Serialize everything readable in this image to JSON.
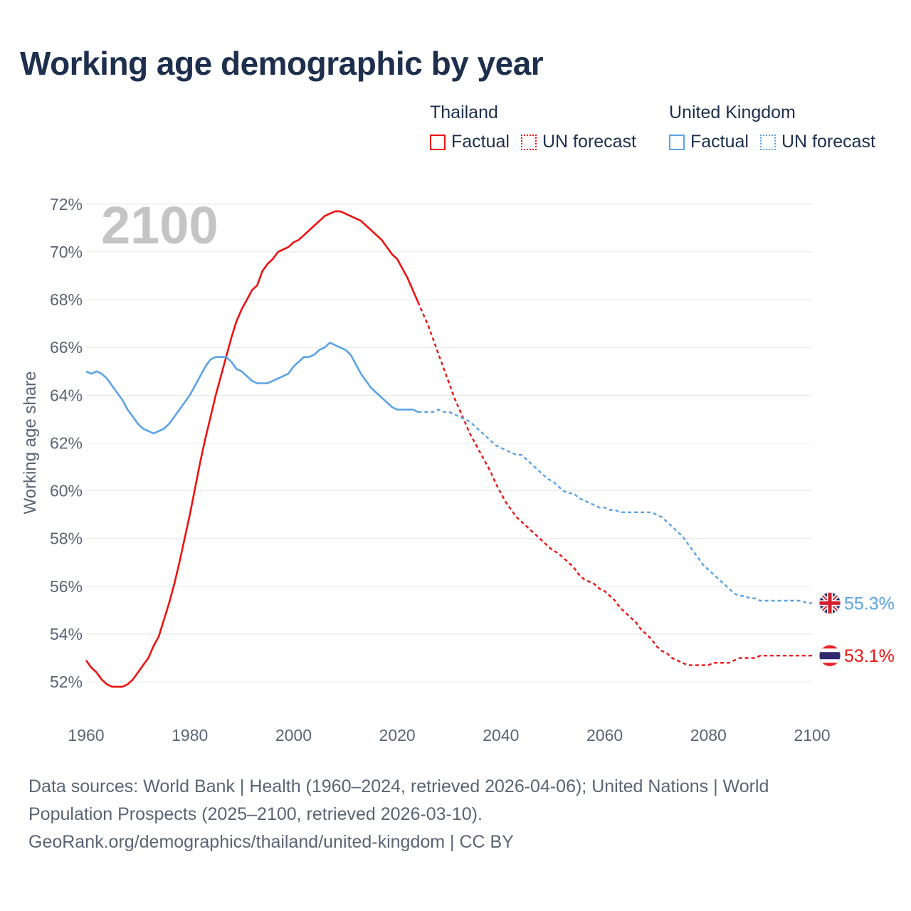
{
  "page": {
    "title": "Working age demographic by year",
    "footer": [
      "Data sources: World Bank | Health (1960–2024, retrieved 2026-04-06); United Nations | World",
      "Population Prospects (2025–2100, retrieved 2026-03-10).",
      "GeoRank.org/demographics/thailand/united-kingdom | CC BY"
    ]
  },
  "legend": {
    "groups": [
      {
        "name": "Thailand",
        "color": "#ee1111",
        "factual_label": "Factual",
        "forecast_label": "UN forecast"
      },
      {
        "name": "United Kingdom",
        "color": "#5aa3e6",
        "factual_label": "Factual",
        "forecast_label": "UN forecast"
      }
    ]
  },
  "chart_data": {
    "type": "line",
    "title": "Working age demographic by year",
    "year_watermark": "2100",
    "ylabel": "Working age share",
    "xlabel": "",
    "xlim": [
      1960,
      2100
    ],
    "ylim": [
      51.2,
      72.5
    ],
    "x_ticks": [
      1960,
      1980,
      2000,
      2020,
      2040,
      2060,
      2080,
      2100
    ],
    "y_ticks": [
      52,
      54,
      56,
      58,
      60,
      62,
      64,
      66,
      68,
      70,
      72
    ],
    "y_tick_labels": [
      "52%",
      "54%",
      "56%",
      "58%",
      "60%",
      "62%",
      "64%",
      "66%",
      "68%",
      "70%",
      "72%"
    ],
    "x_tick_labels": [
      "1960",
      "1980",
      "2000",
      "2020",
      "2040",
      "2060",
      "2080",
      "2100"
    ],
    "forecast_start_year": 2024,
    "grid": true,
    "series": [
      {
        "name": "Thailand",
        "color": "#ee1111",
        "end_label": "53.1%",
        "flag": "thailand-flag",
        "points": [
          [
            1960,
            52.9
          ],
          [
            1961,
            52.6
          ],
          [
            1962,
            52.4
          ],
          [
            1963,
            52.1
          ],
          [
            1964,
            51.9
          ],
          [
            1965,
            51.8
          ],
          [
            1966,
            51.8
          ],
          [
            1967,
            51.8
          ],
          [
            1968,
            51.9
          ],
          [
            1969,
            52.1
          ],
          [
            1970,
            52.4
          ],
          [
            1971,
            52.7
          ],
          [
            1972,
            53.0
          ],
          [
            1973,
            53.5
          ],
          [
            1974,
            53.9
          ],
          [
            1975,
            54.6
          ],
          [
            1976,
            55.3
          ],
          [
            1977,
            56.1
          ],
          [
            1978,
            57.0
          ],
          [
            1979,
            58.0
          ],
          [
            1980,
            59.0
          ],
          [
            1981,
            60.1
          ],
          [
            1982,
            61.2
          ],
          [
            1983,
            62.2
          ],
          [
            1984,
            63.1
          ],
          [
            1985,
            64.0
          ],
          [
            1986,
            64.8
          ],
          [
            1987,
            65.6
          ],
          [
            1988,
            66.4
          ],
          [
            1989,
            67.1
          ],
          [
            1990,
            67.6
          ],
          [
            1991,
            68.0
          ],
          [
            1992,
            68.4
          ],
          [
            1993,
            68.6
          ],
          [
            1994,
            69.2
          ],
          [
            1995,
            69.5
          ],
          [
            1996,
            69.7
          ],
          [
            1997,
            70.0
          ],
          [
            1998,
            70.1
          ],
          [
            1999,
            70.2
          ],
          [
            2000,
            70.4
          ],
          [
            2001,
            70.5
          ],
          [
            2002,
            70.7
          ],
          [
            2003,
            70.9
          ],
          [
            2004,
            71.1
          ],
          [
            2005,
            71.3
          ],
          [
            2006,
            71.5
          ],
          [
            2007,
            71.6
          ],
          [
            2008,
            71.7
          ],
          [
            2009,
            71.7
          ],
          [
            2010,
            71.6
          ],
          [
            2011,
            71.5
          ],
          [
            2012,
            71.4
          ],
          [
            2013,
            71.3
          ],
          [
            2014,
            71.1
          ],
          [
            2015,
            70.9
          ],
          [
            2016,
            70.7
          ],
          [
            2017,
            70.5
          ],
          [
            2018,
            70.2
          ],
          [
            2019,
            69.9
          ],
          [
            2020,
            69.7
          ],
          [
            2021,
            69.3
          ],
          [
            2022,
            68.9
          ],
          [
            2023,
            68.4
          ],
          [
            2024,
            67.9
          ],
          [
            2025,
            67.4
          ],
          [
            2026,
            66.9
          ],
          [
            2027,
            66.3
          ],
          [
            2028,
            65.7
          ],
          [
            2029,
            65.1
          ],
          [
            2030,
            64.5
          ],
          [
            2031,
            63.9
          ],
          [
            2032,
            63.4
          ],
          [
            2033,
            62.9
          ],
          [
            2034,
            62.4
          ],
          [
            2035,
            62.0
          ],
          [
            2036,
            61.6
          ],
          [
            2037,
            61.2
          ],
          [
            2038,
            60.8
          ],
          [
            2039,
            60.3
          ],
          [
            2040,
            59.9
          ],
          [
            2041,
            59.5
          ],
          [
            2042,
            59.2
          ],
          [
            2043,
            58.9
          ],
          [
            2044,
            58.7
          ],
          [
            2045,
            58.5
          ],
          [
            2046,
            58.3
          ],
          [
            2047,
            58.1
          ],
          [
            2048,
            57.9
          ],
          [
            2049,
            57.7
          ],
          [
            2050,
            57.5
          ],
          [
            2051,
            57.4
          ],
          [
            2052,
            57.2
          ],
          [
            2053,
            57.0
          ],
          [
            2054,
            56.8
          ],
          [
            2055,
            56.5
          ],
          [
            2056,
            56.3
          ],
          [
            2057,
            56.2
          ],
          [
            2058,
            56.1
          ],
          [
            2059,
            55.9
          ],
          [
            2060,
            55.8
          ],
          [
            2061,
            55.6
          ],
          [
            2062,
            55.4
          ],
          [
            2063,
            55.1
          ],
          [
            2064,
            54.9
          ],
          [
            2065,
            54.7
          ],
          [
            2066,
            54.5
          ],
          [
            2067,
            54.2
          ],
          [
            2068,
            54.0
          ],
          [
            2069,
            53.8
          ],
          [
            2070,
            53.5
          ],
          [
            2071,
            53.3
          ],
          [
            2072,
            53.2
          ],
          [
            2073,
            53.0
          ],
          [
            2074,
            52.9
          ],
          [
            2075,
            52.8
          ],
          [
            2076,
            52.7
          ],
          [
            2077,
            52.7
          ],
          [
            2078,
            52.7
          ],
          [
            2079,
            52.7
          ],
          [
            2080,
            52.7
          ],
          [
            2081,
            52.8
          ],
          [
            2082,
            52.8
          ],
          [
            2083,
            52.8
          ],
          [
            2084,
            52.8
          ],
          [
            2085,
            52.9
          ],
          [
            2086,
            53.0
          ],
          [
            2087,
            53.0
          ],
          [
            2088,
            53.0
          ],
          [
            2089,
            53.0
          ],
          [
            2090,
            53.1
          ],
          [
            2091,
            53.1
          ],
          [
            2092,
            53.1
          ],
          [
            2093,
            53.1
          ],
          [
            2094,
            53.1
          ],
          [
            2095,
            53.1
          ],
          [
            2096,
            53.1
          ],
          [
            2097,
            53.1
          ],
          [
            2098,
            53.1
          ],
          [
            2099,
            53.1
          ],
          [
            2100,
            53.1
          ]
        ]
      },
      {
        "name": "United Kingdom",
        "color": "#5aa3e6",
        "end_label": "55.3%",
        "flag": "united-kingdom-flag",
        "points": [
          [
            1960,
            65.0
          ],
          [
            1961,
            64.9
          ],
          [
            1962,
            65.0
          ],
          [
            1963,
            64.9
          ],
          [
            1964,
            64.7
          ],
          [
            1965,
            64.4
          ],
          [
            1966,
            64.1
          ],
          [
            1967,
            63.8
          ],
          [
            1968,
            63.4
          ],
          [
            1969,
            63.1
          ],
          [
            1970,
            62.8
          ],
          [
            1971,
            62.6
          ],
          [
            1972,
            62.5
          ],
          [
            1973,
            62.4
          ],
          [
            1974,
            62.5
          ],
          [
            1975,
            62.6
          ],
          [
            1976,
            62.8
          ],
          [
            1977,
            63.1
          ],
          [
            1978,
            63.4
          ],
          [
            1979,
            63.7
          ],
          [
            1980,
            64.0
          ],
          [
            1981,
            64.4
          ],
          [
            1982,
            64.8
          ],
          [
            1983,
            65.2
          ],
          [
            1984,
            65.5
          ],
          [
            1985,
            65.6
          ],
          [
            1986,
            65.6
          ],
          [
            1987,
            65.6
          ],
          [
            1988,
            65.4
          ],
          [
            1989,
            65.1
          ],
          [
            1990,
            65.0
          ],
          [
            1991,
            64.8
          ],
          [
            1992,
            64.6
          ],
          [
            1993,
            64.5
          ],
          [
            1994,
            64.5
          ],
          [
            1995,
            64.5
          ],
          [
            1996,
            64.6
          ],
          [
            1997,
            64.7
          ],
          [
            1998,
            64.8
          ],
          [
            1999,
            64.9
          ],
          [
            2000,
            65.2
          ],
          [
            2001,
            65.4
          ],
          [
            2002,
            65.6
          ],
          [
            2003,
            65.6
          ],
          [
            2004,
            65.7
          ],
          [
            2005,
            65.9
          ],
          [
            2006,
            66.0
          ],
          [
            2007,
            66.2
          ],
          [
            2008,
            66.1
          ],
          [
            2009,
            66.0
          ],
          [
            2010,
            65.9
          ],
          [
            2011,
            65.7
          ],
          [
            2012,
            65.3
          ],
          [
            2013,
            64.9
          ],
          [
            2014,
            64.6
          ],
          [
            2015,
            64.3
          ],
          [
            2016,
            64.1
          ],
          [
            2017,
            63.9
          ],
          [
            2018,
            63.7
          ],
          [
            2019,
            63.5
          ],
          [
            2020,
            63.4
          ],
          [
            2021,
            63.4
          ],
          [
            2022,
            63.4
          ],
          [
            2023,
            63.4
          ],
          [
            2024,
            63.3
          ],
          [
            2025,
            63.3
          ],
          [
            2026,
            63.3
          ],
          [
            2027,
            63.3
          ],
          [
            2028,
            63.4
          ],
          [
            2029,
            63.3
          ],
          [
            2030,
            63.3
          ],
          [
            2031,
            63.2
          ],
          [
            2032,
            63.1
          ],
          [
            2033,
            63.0
          ],
          [
            2034,
            62.9
          ],
          [
            2035,
            62.7
          ],
          [
            2036,
            62.5
          ],
          [
            2037,
            62.3
          ],
          [
            2038,
            62.1
          ],
          [
            2039,
            61.9
          ],
          [
            2040,
            61.8
          ],
          [
            2041,
            61.7
          ],
          [
            2042,
            61.6
          ],
          [
            2043,
            61.5
          ],
          [
            2044,
            61.5
          ],
          [
            2045,
            61.3
          ],
          [
            2046,
            61.1
          ],
          [
            2047,
            60.9
          ],
          [
            2048,
            60.7
          ],
          [
            2049,
            60.5
          ],
          [
            2050,
            60.4
          ],
          [
            2051,
            60.2
          ],
          [
            2052,
            60.0
          ],
          [
            2053,
            59.9
          ],
          [
            2054,
            59.9
          ],
          [
            2055,
            59.7
          ],
          [
            2056,
            59.6
          ],
          [
            2057,
            59.5
          ],
          [
            2058,
            59.4
          ],
          [
            2059,
            59.3
          ],
          [
            2060,
            59.3
          ],
          [
            2061,
            59.2
          ],
          [
            2062,
            59.2
          ],
          [
            2063,
            59.1
          ],
          [
            2064,
            59.1
          ],
          [
            2065,
            59.1
          ],
          [
            2066,
            59.1
          ],
          [
            2067,
            59.1
          ],
          [
            2068,
            59.1
          ],
          [
            2069,
            59.1
          ],
          [
            2070,
            59.0
          ],
          [
            2071,
            58.9
          ],
          [
            2072,
            58.7
          ],
          [
            2073,
            58.5
          ],
          [
            2074,
            58.3
          ],
          [
            2075,
            58.1
          ],
          [
            2076,
            57.8
          ],
          [
            2077,
            57.5
          ],
          [
            2078,
            57.2
          ],
          [
            2079,
            56.9
          ],
          [
            2080,
            56.7
          ],
          [
            2081,
            56.5
          ],
          [
            2082,
            56.3
          ],
          [
            2083,
            56.1
          ],
          [
            2084,
            55.9
          ],
          [
            2085,
            55.7
          ],
          [
            2086,
            55.6
          ],
          [
            2087,
            55.6
          ],
          [
            2088,
            55.5
          ],
          [
            2089,
            55.5
          ],
          [
            2090,
            55.4
          ],
          [
            2091,
            55.4
          ],
          [
            2092,
            55.4
          ],
          [
            2093,
            55.4
          ],
          [
            2094,
            55.4
          ],
          [
            2095,
            55.4
          ],
          [
            2096,
            55.4
          ],
          [
            2097,
            55.4
          ],
          [
            2098,
            55.4
          ],
          [
            2099,
            55.3
          ],
          [
            2100,
            55.3
          ]
        ]
      }
    ]
  }
}
